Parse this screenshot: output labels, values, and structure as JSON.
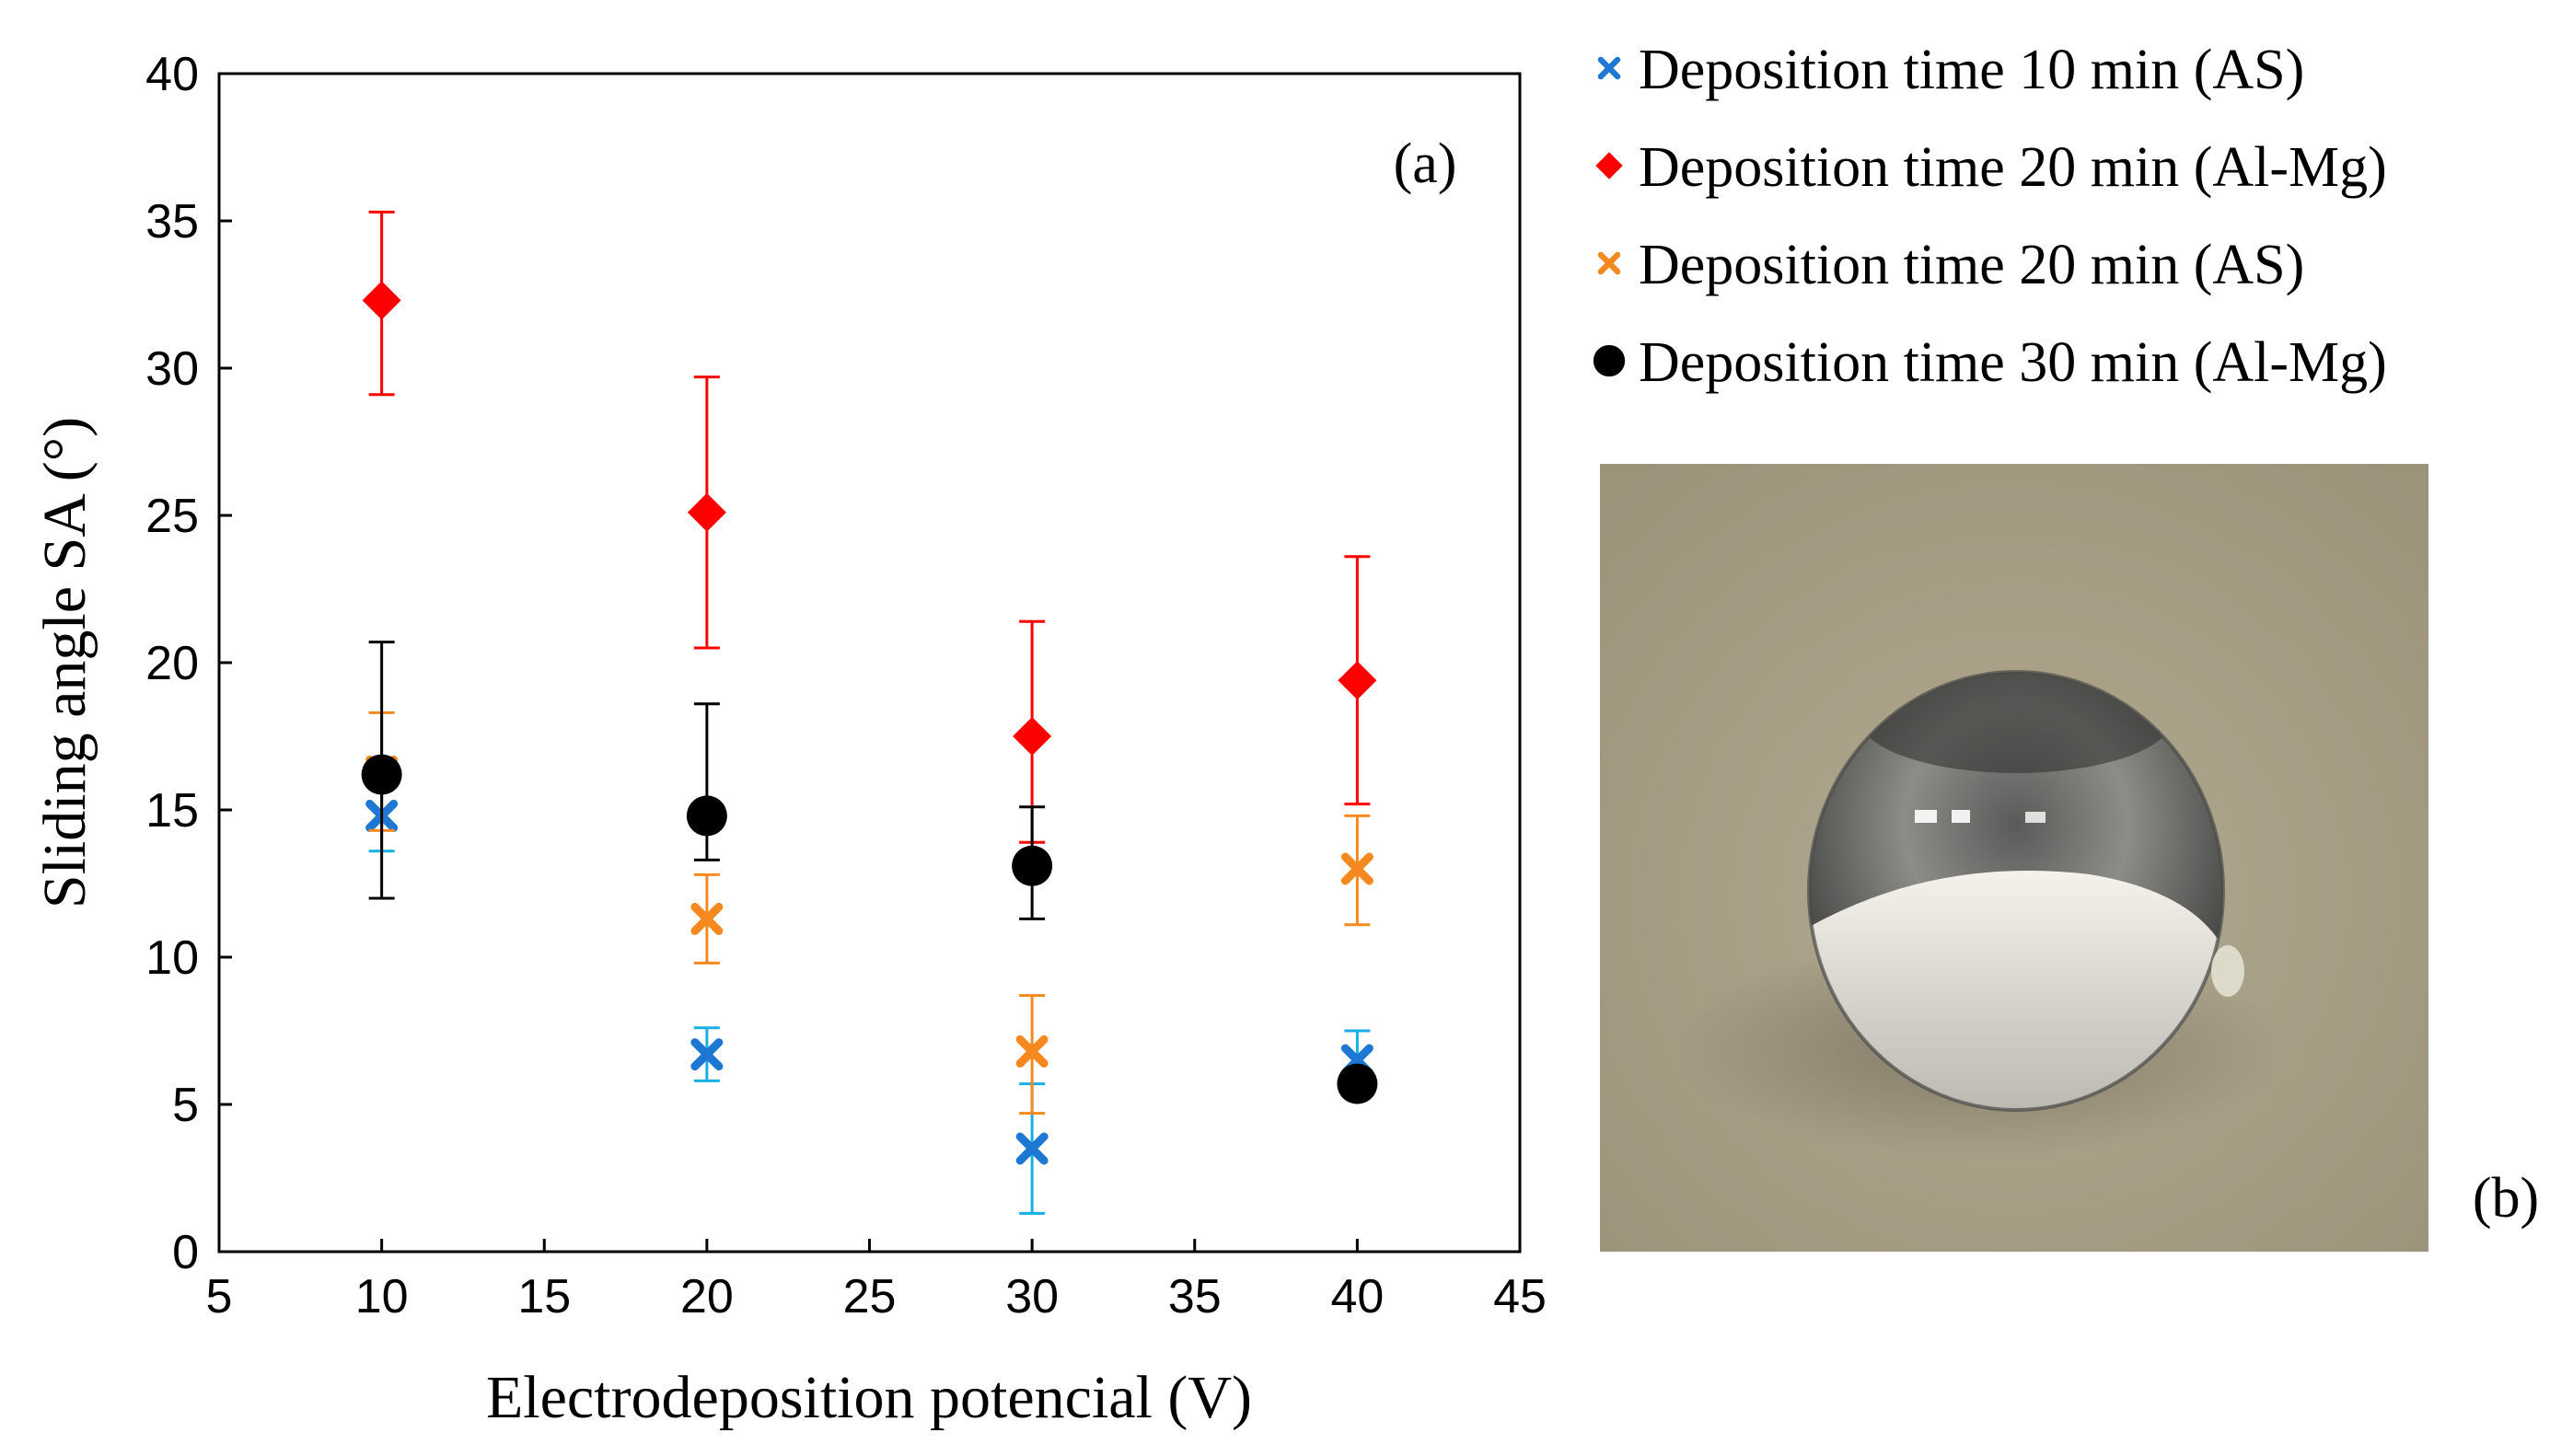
{
  "chart_data": {
    "type": "scatter",
    "title": "",
    "xlabel": "Electrodeposition potencial (V)",
    "ylabel": "Sliding angle SA  (°)",
    "xlim": [
      5,
      45
    ],
    "ylim": [
      0,
      40
    ],
    "xticks": [
      5,
      10,
      15,
      20,
      25,
      30,
      35,
      40,
      45
    ],
    "yticks": [
      0,
      5,
      10,
      15,
      20,
      25,
      30,
      35,
      40
    ],
    "grid": false,
    "legend_position": "top-right, outside plot",
    "panel_label_a": "(a)",
    "panel_label_b": "(b)",
    "series": [
      {
        "name": "Deposition time 10 min (AS)",
        "marker": "x",
        "color": "#1f77d4",
        "error_color": "#18aee6",
        "x": [
          10,
          20,
          30,
          40
        ],
        "y": [
          14.8,
          6.7,
          3.5,
          6.5
        ],
        "yerr_low": [
          1.2,
          0.9,
          2.2,
          0.5
        ],
        "yerr_high": [
          1.2,
          0.9,
          2.2,
          1.0
        ]
      },
      {
        "name": "Deposition time 20 min (Al-Mg)",
        "marker": "diamond",
        "color": "#ff0000",
        "error_color": "#ff0000",
        "x": [
          10,
          20,
          30,
          40
        ],
        "y": [
          32.3,
          25.1,
          17.5,
          19.4
        ],
        "yerr_low": [
          3.2,
          4.6,
          3.6,
          4.2
        ],
        "yerr_high": [
          3.0,
          4.6,
          3.9,
          4.2
        ]
      },
      {
        "name": "Deposition time 20 min (AS)",
        "marker": "x",
        "color": "#f5891f",
        "error_color": "#f5891f",
        "x": [
          10,
          20,
          30,
          40
        ],
        "y": [
          16.3,
          11.3,
          6.8,
          13.0
        ],
        "yerr_low": [
          2.0,
          1.5,
          2.1,
          1.9
        ],
        "yerr_high": [
          2.0,
          1.5,
          1.9,
          1.8
        ]
      },
      {
        "name": "Deposition time 30 min (Al-Mg)",
        "marker": "circle",
        "color": "#000000",
        "error_color": "#000000",
        "x": [
          10,
          20,
          30,
          40
        ],
        "y": [
          16.2,
          14.8,
          13.1,
          5.7
        ],
        "yerr_low": [
          4.2,
          1.5,
          1.8,
          0.2
        ],
        "yerr_high": [
          4.5,
          3.8,
          2.0,
          0.2
        ]
      }
    ],
    "image_panel_description_colors": {
      "background": "#a89f86",
      "droplet": "#d8d8d4"
    }
  }
}
